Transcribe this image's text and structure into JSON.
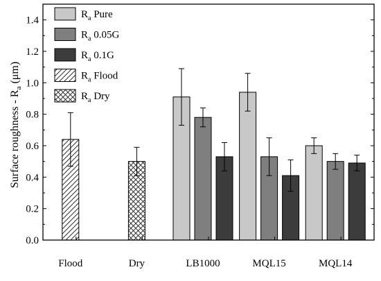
{
  "chart_data": {
    "type": "bar",
    "ylabel": {
      "main": "Surface roughness - R",
      "sub": "a",
      "unit": " (μm)"
    },
    "ylim": [
      0.0,
      1.5
    ],
    "yticks": [
      "0.0",
      "0.2",
      "0.4",
      "0.6",
      "0.8",
      "1.0",
      "1.2",
      "1.4"
    ],
    "categories": [
      "Flood",
      "Dry",
      "LB1000",
      "MQL15",
      "MQL14"
    ],
    "series": [
      {
        "name": "Pure",
        "color": "#c8c8c8",
        "pattern": "solid",
        "values": [
          null,
          null,
          0.91,
          0.94,
          0.6
        ],
        "errors": [
          null,
          null,
          0.18,
          0.12,
          0.05
        ]
      },
      {
        "name": "0.05G",
        "color": "#7f7f7f",
        "pattern": "solid",
        "values": [
          null,
          null,
          0.78,
          0.53,
          0.5
        ],
        "errors": [
          null,
          null,
          0.06,
          0.12,
          0.05
        ]
      },
      {
        "name": "0.1G",
        "color": "#3c3c3c",
        "pattern": "solid",
        "values": [
          null,
          null,
          0.53,
          0.41,
          0.49
        ],
        "errors": [
          null,
          null,
          0.09,
          0.1,
          0.05
        ]
      },
      {
        "name": "Flood",
        "color": "#ffffff",
        "pattern": "diagonal-hatch",
        "values": [
          0.64,
          null,
          null,
          null,
          null
        ],
        "errors": [
          0.17,
          null,
          null,
          null,
          null
        ]
      },
      {
        "name": "Dry",
        "color": "#ffffff",
        "pattern": "cross-hatch",
        "values": [
          null,
          0.5,
          null,
          null,
          null
        ],
        "errors": [
          null,
          0.09,
          null,
          null,
          null
        ]
      }
    ],
    "legend": {
      "placement": "top-left",
      "prefix_main": "R",
      "prefix_sub": "a"
    },
    "grid": false
  }
}
